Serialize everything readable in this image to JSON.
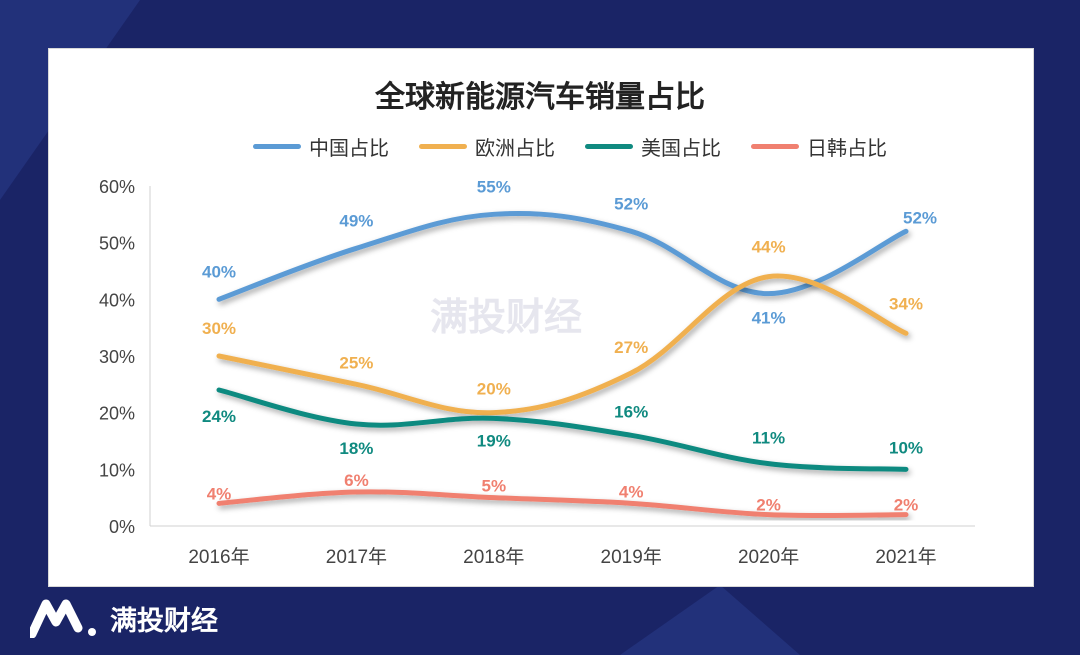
{
  "brand": {
    "name": "满投财经",
    "logo": "满投财经"
  },
  "watermark": "满投财经",
  "chart_data": {
    "type": "line",
    "title": "全球新能源汽车销量占比",
    "categories": [
      "2016年",
      "2017年",
      "2018年",
      "2019年",
      "2020年",
      "2021年"
    ],
    "ylim": [
      0,
      60
    ],
    "yticks": [
      "0%",
      "10%",
      "20%",
      "30%",
      "40%",
      "50%",
      "60%"
    ],
    "grid": false,
    "legend": "top",
    "series": [
      {
        "name": "中国占比",
        "color": "#5b9bd5",
        "values": [
          40,
          49,
          55,
          52,
          41,
          52
        ],
        "labels": [
          "40%",
          "49%",
          "55%",
          "52%",
          "41%",
          "52%"
        ]
      },
      {
        "name": "欧洲占比",
        "color": "#f0b050",
        "values": [
          30,
          25,
          20,
          27,
          44,
          34
        ],
        "labels": [
          "30%",
          "25%",
          "20%",
          "27%",
          "44%",
          "34%"
        ]
      },
      {
        "name": "美国占比",
        "color": "#108a80",
        "values": [
          24,
          18,
          19,
          16,
          11,
          10
        ],
        "labels": [
          "24%",
          "18%",
          "19%",
          "16%",
          "11%",
          "10%"
        ]
      },
      {
        "name": "日韩占比",
        "color": "#f08070",
        "values": [
          4,
          6,
          5,
          4,
          2,
          2
        ],
        "labels": [
          "4%",
          "6%",
          "5%",
          "4%",
          "2%",
          "2%"
        ]
      }
    ]
  }
}
